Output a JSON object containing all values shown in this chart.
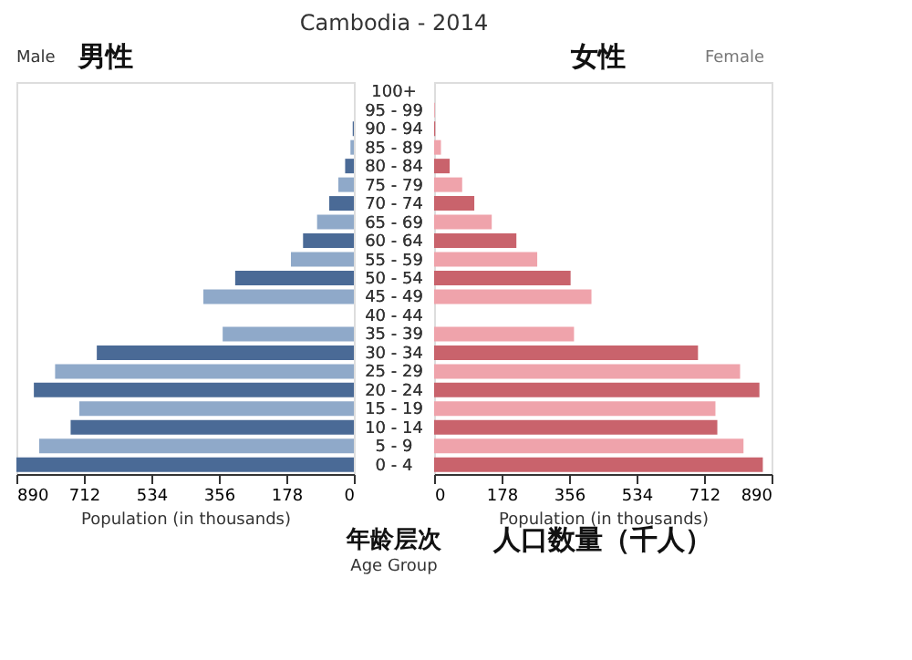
{
  "chart_data": [
    {
      "type": "bar",
      "orientation": "horizontal",
      "title": "Cambodia - 2014",
      "annotations": [
        "Male",
        "男性"
      ],
      "xlabel": "Population (in thousands)",
      "categories": [
        "100+",
        "95 - 99",
        "90 - 94",
        "85 - 89",
        "80 - 84",
        "75 - 79",
        "70 - 74",
        "65 - 69",
        "60 - 64",
        "55 - 59",
        "50 - 54",
        "45 - 49",
        "40 - 44",
        "35 - 39",
        "30 - 34",
        "25 - 29",
        "20 - 24",
        "15 - 19",
        "10 - 14",
        "5 - 9",
        "0 - 4"
      ],
      "values": [
        null,
        null,
        3,
        9,
        23,
        41,
        65,
        97,
        134,
        166,
        313,
        397,
        null,
        346,
        678,
        788,
        844,
        724,
        747,
        830,
        890
      ],
      "colors": [
        "#4a6a96",
        "#8fa9c9",
        "#4a6a96",
        "#8fa9c9",
        "#4a6a96",
        "#8fa9c9",
        "#4a6a96",
        "#8fa9c9",
        "#4a6a96",
        "#8fa9c9",
        "#4a6a96",
        "#8fa9c9",
        "#4a6a96",
        "#8fa9c9",
        "#4a6a96",
        "#8fa9c9",
        "#4a6a96",
        "#8fa9c9",
        "#4a6a96",
        "#8fa9c9",
        "#4a6a96"
      ],
      "xlim": [
        890,
        0
      ],
      "xticks": [
        890,
        712,
        534,
        356,
        178,
        0
      ],
      "tick_labels": "x",
      "grid": false,
      "legend": false
    },
    {
      "type": "bar",
      "orientation": "horizontal",
      "annotations": [
        "女性",
        "Female",
        "人口数量（千人）",
        "年龄层次"
      ],
      "xlabel": "Population (in thousands)",
      "ylabel": "Age Group",
      "categories": [
        "100+",
        "95 - 99",
        "90 - 94",
        "85 - 89",
        "80 - 84",
        "75 - 79",
        "70 - 74",
        "65 - 69",
        "60 - 64",
        "55 - 59",
        "50 - 54",
        "45 - 49",
        "40 - 44",
        "35 - 39",
        "30 - 34",
        "25 - 29",
        "20 - 24",
        "15 - 19",
        "10 - 14",
        "5 - 9",
        "0 - 4"
      ],
      "values": [
        null,
        2,
        3,
        18,
        41,
        74,
        106,
        152,
        217,
        272,
        360,
        415,
        null,
        369,
        696,
        807,
        858,
        742,
        747,
        816,
        867
      ],
      "colors": [
        "#c9636c",
        "#efa3ab",
        "#c9636c",
        "#efa3ab",
        "#c9636c",
        "#efa3ab",
        "#c9636c",
        "#efa3ab",
        "#c9636c",
        "#efa3ab",
        "#c9636c",
        "#efa3ab",
        "#c9636c",
        "#efa3ab",
        "#c9636c",
        "#efa3ab",
        "#c9636c",
        "#efa3ab",
        "#c9636c",
        "#efa3ab",
        "#c9636c"
      ],
      "xlim": [
        0,
        890
      ],
      "xticks": [
        0,
        178,
        356,
        534,
        712,
        890
      ],
      "tick_labels": "x",
      "grid": false,
      "legend": false
    }
  ]
}
